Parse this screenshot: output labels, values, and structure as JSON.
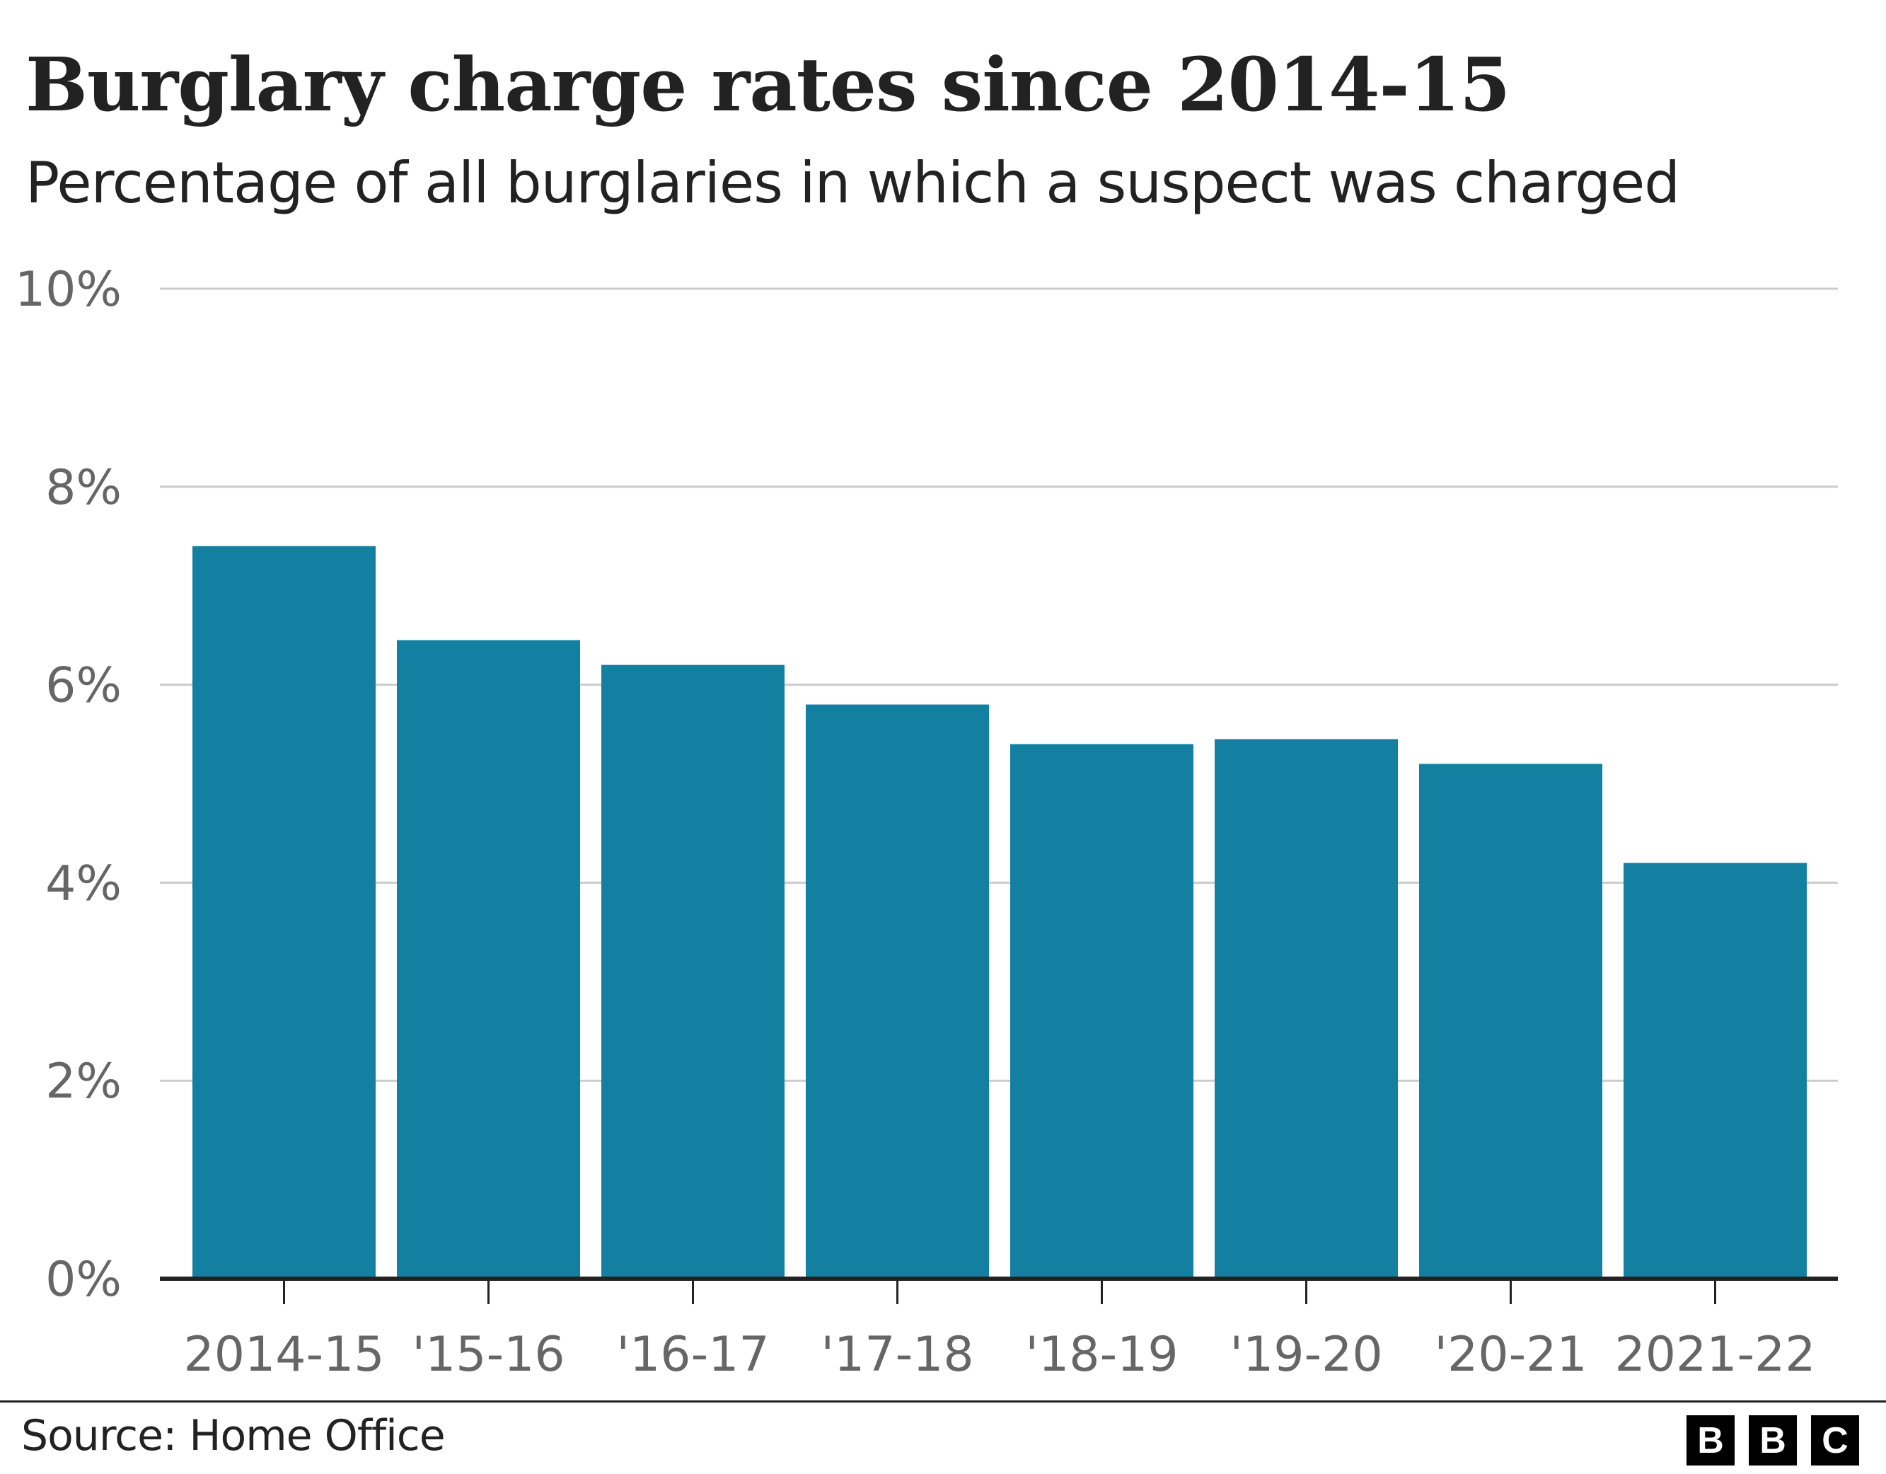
{
  "chart_data": {
    "type": "bar",
    "title": "Burglary charge rates since 2014-15",
    "subtitle": "Percentage of all burglaries in which a suspect was charged",
    "categories": [
      "2014-15",
      "'15-16",
      "'16-17",
      "'17-18",
      "'18-19",
      "'19-20",
      "'20-21",
      "2021-22"
    ],
    "values": [
      7.4,
      6.45,
      6.2,
      5.8,
      5.4,
      5.45,
      5.2,
      4.2
    ],
    "xlabel": "",
    "ylabel": "",
    "ylim": [
      0,
      10
    ],
    "yticks": [
      0,
      2,
      4,
      6,
      8,
      10
    ],
    "ytick_labels": [
      "0%",
      "2%",
      "4%",
      "6%",
      "8%",
      "10%"
    ],
    "grid": true,
    "bar_color": "#1380a1"
  },
  "footer": {
    "source": "Source: Home Office",
    "logo_letters": [
      "B",
      "B",
      "C"
    ]
  }
}
